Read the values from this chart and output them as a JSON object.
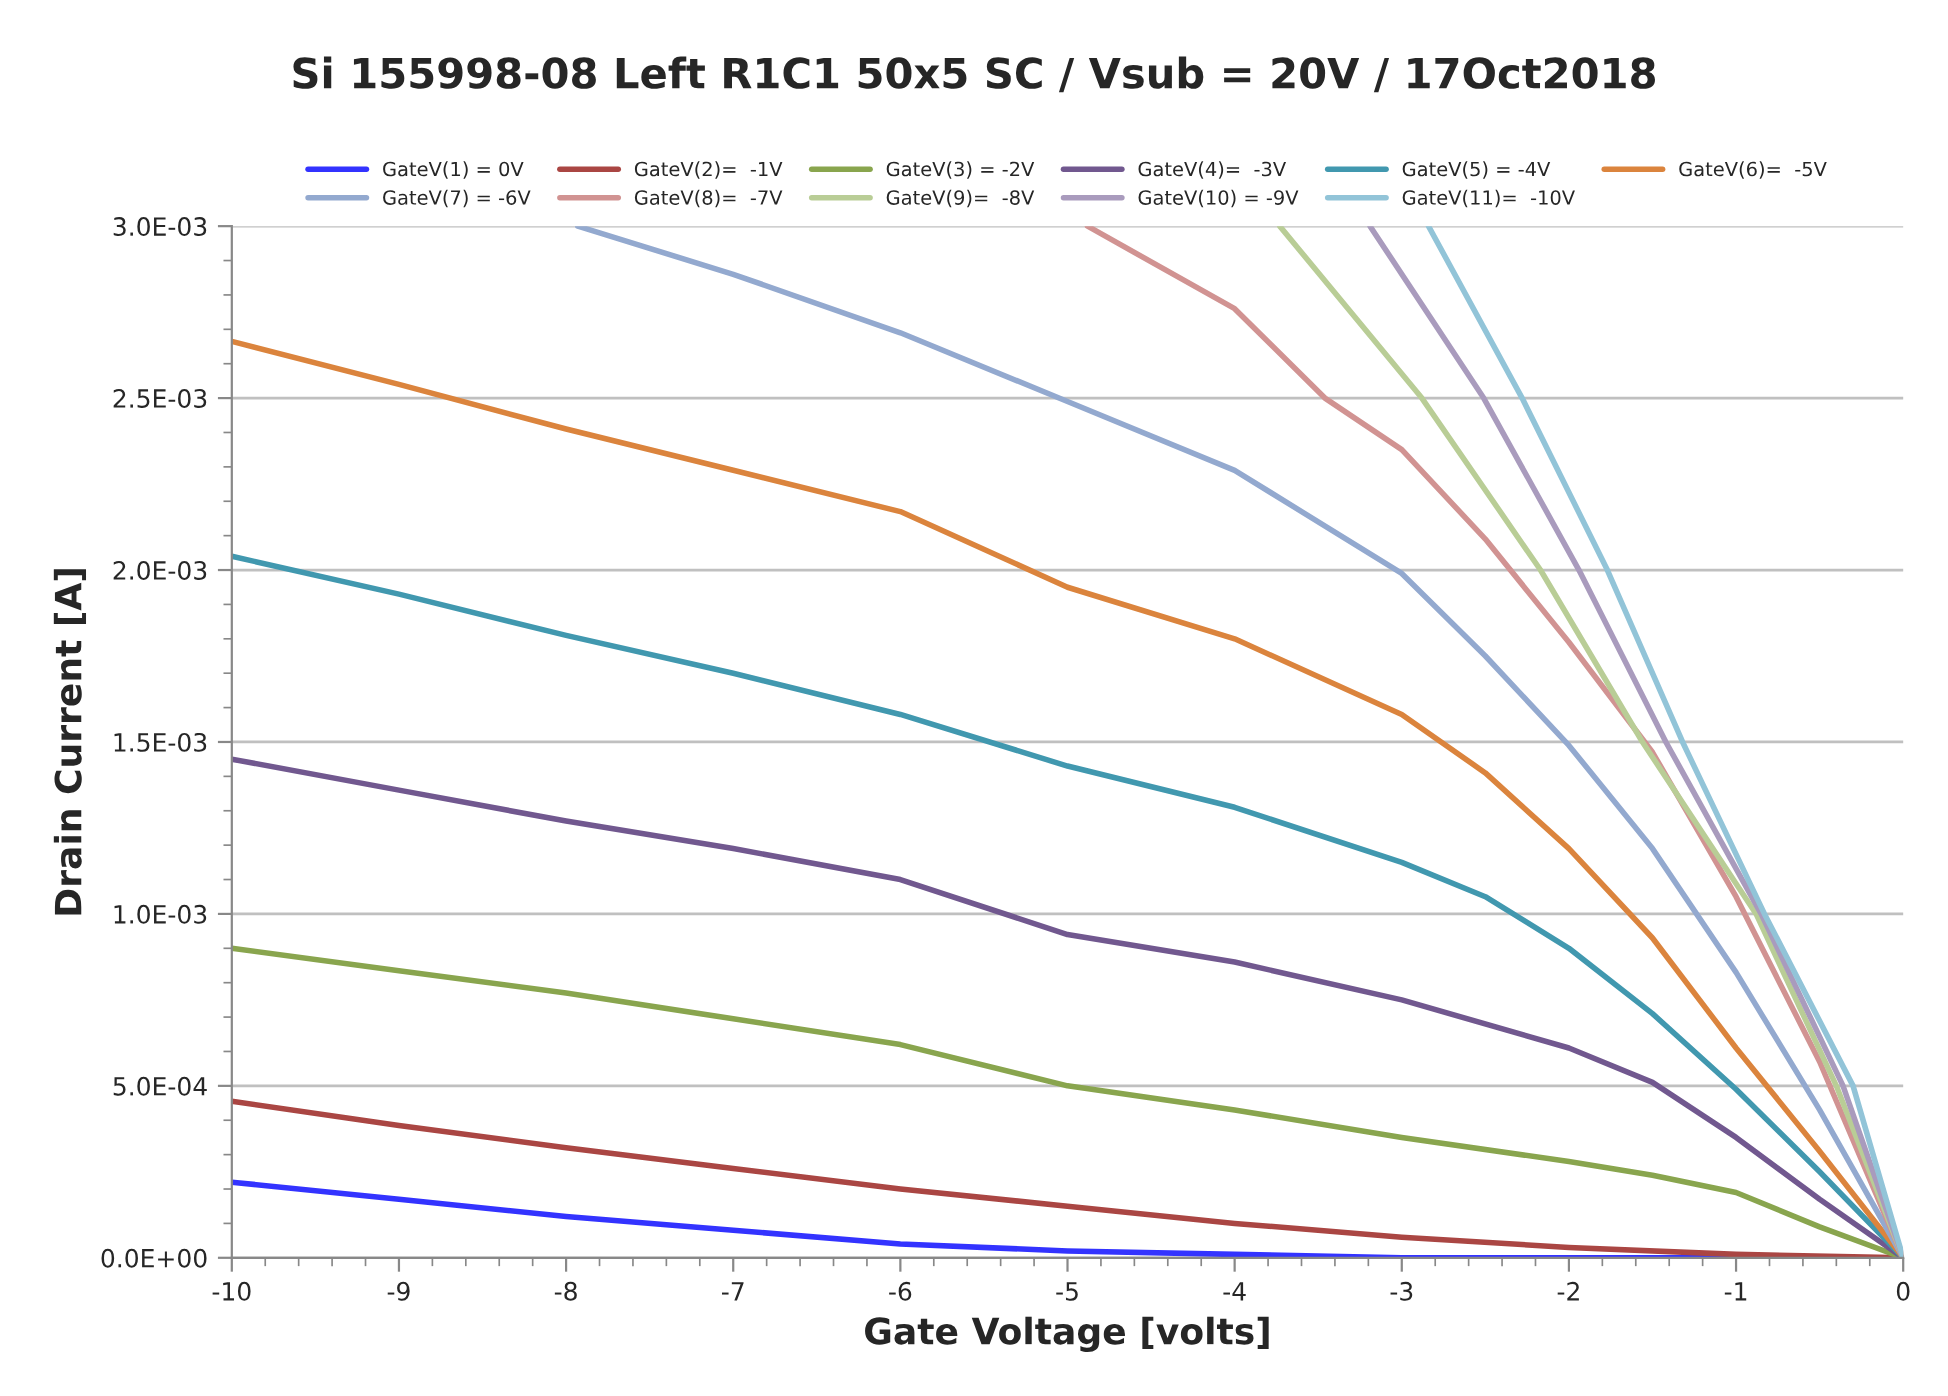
{
  "chart_data": {
    "type": "line",
    "title": "Si 155998-08 Left R1C1 50x5 SC / Vsub = 20V / 17Oct2018",
    "xlabel": "Gate Voltage [volts]",
    "ylabel": "Drain Current [A]",
    "xlim": [
      -10,
      0
    ],
    "xticks": [
      -10,
      -9,
      -8,
      -7,
      -6,
      -5,
      -4,
      -3,
      -2,
      -1,
      0
    ],
    "ylim": [
      0,
      0.003
    ],
    "yticks": [
      {
        "value": 0,
        "label": "0.0E+00"
      },
      {
        "value": 0.0005,
        "label": "5.0E-04"
      },
      {
        "value": 0.001,
        "label": "1.0E-03"
      },
      {
        "value": 0.0015,
        "label": "1.5E-03"
      },
      {
        "value": 0.002,
        "label": "2.0E-03"
      },
      {
        "value": 0.0025,
        "label": "2.5E-03"
      },
      {
        "value": 0.003,
        "label": "3.0E-03"
      }
    ],
    "grid": "y",
    "legend": "top",
    "marker": "none",
    "line_style": "solid",
    "series": [
      {
        "name": "GateV(1) = 0V",
        "color": "#3333ff",
        "x": [
          -10,
          -9,
          -8,
          -7,
          -6,
          -5,
          -4,
          -3,
          -2,
          -1,
          0
        ],
        "values": [
          0.00022,
          0.00017,
          0.00012,
          8e-05,
          4e-05,
          2e-05,
          1e-05,
          0,
          0,
          null,
          0
        ]
      },
      {
        "name": "GateV(2)=  -1V",
        "color": "#aa4643",
        "x": [
          -10,
          -9,
          -8,
          -7,
          -6,
          -5,
          -4,
          -3,
          -2,
          -1,
          0
        ],
        "values": [
          0.000455,
          0.000385,
          0.00032,
          0.00026,
          0.0002,
          0.00015,
          0.0001,
          6e-05,
          3e-05,
          1e-05,
          0
        ]
      },
      {
        "name": "GateV(3) = -2V",
        "color": "#89a54e",
        "x": [
          -10,
          -9,
          -8,
          -7,
          -6,
          -5,
          -4,
          -3,
          -2,
          -1.5,
          -1,
          -0.5,
          0
        ],
        "values": [
          0.0009,
          0.000835,
          0.00077,
          0.000695,
          0.00062,
          0.0005,
          0.00043,
          0.00035,
          0.00028,
          0.00024,
          0.00019,
          9e-05,
          0
        ]
      },
      {
        "name": "GateV(4)=  -3V",
        "color": "#71588f",
        "x": [
          -10,
          -9,
          -8,
          -7,
          -6,
          -5,
          -4,
          -3,
          -2,
          -1.5,
          -1,
          -0.5,
          0
        ],
        "values": [
          0.00145,
          0.00136,
          0.00127,
          0.00119,
          0.0011,
          0.00094,
          0.00086,
          0.00075,
          0.00061,
          0.00051,
          0.00035,
          0.00017,
          0
        ]
      },
      {
        "name": "GateV(5) = -4V",
        "color": "#4198af",
        "x": [
          -10,
          -9,
          -8,
          -7,
          -6,
          -5,
          -4,
          -3,
          -2.5,
          -2,
          -1.5,
          -1,
          -0.5,
          0
        ],
        "values": [
          0.00204,
          0.00193,
          0.00181,
          0.0017,
          0.00158,
          0.00143,
          0.00131,
          0.00115,
          0.00105,
          0.0009,
          0.00071,
          0.00049,
          0.00025,
          0
        ]
      },
      {
        "name": "GateV(6)=  -5V",
        "color": "#db843d",
        "x": [
          -10,
          -9,
          -8,
          -7,
          -6,
          -5,
          -4,
          -3,
          -2.5,
          -2,
          -1.5,
          -1,
          -0.5,
          0
        ],
        "values": [
          0.002665,
          0.00254,
          0.00241,
          0.00229,
          0.00217,
          0.00195,
          0.0018,
          0.00158,
          0.00141,
          0.00119,
          0.00093,
          0.00061,
          0.00031,
          0
        ]
      },
      {
        "name": "GateV(7) = -6V",
        "color": "#93a9cf",
        "x": [
          -7.93,
          -7,
          -6,
          -5,
          -4,
          -3,
          -2.5,
          -2,
          -1.5,
          -1,
          -0.5,
          0
        ],
        "values": [
          0.003,
          0.00286,
          0.00269,
          0.00249,
          0.00229,
          0.00199,
          0.00175,
          0.00149,
          0.00119,
          0.00083,
          0.00043,
          0
        ]
      },
      {
        "name": "GateV(8)=  -7V",
        "color": "#d19392",
        "x": [
          -4.88,
          -4,
          -3.46,
          -3,
          -2.5,
          -2,
          -1.5,
          -1,
          -0.5,
          0
        ],
        "values": [
          0.003,
          0.00276,
          0.0025,
          0.00235,
          0.00209,
          0.00179,
          0.00147,
          0.00105,
          0.00057,
          0
        ]
      },
      {
        "name": "GateV(9)=  -8V",
        "color": "#b9cd96",
        "x": [
          -3.73,
          -2.88,
          -2.17,
          -1.56,
          -0.88,
          -0.4,
          0
        ],
        "values": [
          0.003,
          0.0025,
          0.002,
          0.0015,
          0.001,
          0.0005,
          0
        ]
      },
      {
        "name": "GateV(10) = -9V",
        "color": "#a99bbd",
        "x": [
          -3.19,
          -2.51,
          -1.94,
          -1.42,
          -0.85,
          -0.36,
          0
        ],
        "values": [
          0.003,
          0.0025,
          0.002,
          0.0015,
          0.001,
          0.0005,
          0
        ]
      },
      {
        "name": "GateV(11)=  -10V",
        "color": "#92c4d8",
        "x": [
          -2.84,
          -2.28,
          -1.77,
          -1.32,
          -0.83,
          -0.3,
          0
        ],
        "values": [
          0.003,
          0.0025,
          0.002,
          0.0015,
          0.001,
          0.0005,
          0
        ]
      }
    ]
  }
}
